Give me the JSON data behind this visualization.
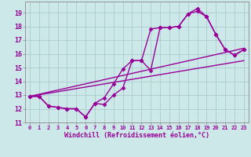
{
  "background_color": "#cce8e8",
  "grid_color": "#aacccc",
  "line_color": "#990099",
  "marker": "D",
  "markersize": 2.5,
  "linewidth": 1.0,
  "xlabel": "Windchill (Refroidissement éolien,°C)",
  "xlim": [
    -0.5,
    23.5
  ],
  "ylim": [
    11,
    19.8
  ],
  "xticks": [
    0,
    1,
    2,
    3,
    4,
    5,
    6,
    7,
    8,
    9,
    10,
    11,
    12,
    13,
    14,
    15,
    16,
    17,
    18,
    19,
    20,
    21,
    22,
    23
  ],
  "yticks": [
    11,
    12,
    13,
    14,
    15,
    16,
    17,
    18,
    19
  ],
  "series_with_markers": [
    {
      "x": [
        0,
        1,
        2,
        3,
        4,
        5,
        6,
        7,
        8,
        9,
        10,
        11,
        12,
        13,
        14,
        15,
        16,
        17,
        18,
        19,
        20,
        21,
        22,
        23
      ],
      "y": [
        12.9,
        12.9,
        12.2,
        12.1,
        12.0,
        12.0,
        11.4,
        12.4,
        12.8,
        13.8,
        14.9,
        15.5,
        15.5,
        17.8,
        17.9,
        17.9,
        18.0,
        18.9,
        19.3,
        18.7,
        17.4,
        16.3,
        15.9,
        16.3
      ]
    },
    {
      "x": [
        0,
        1,
        2,
        3,
        4,
        5,
        6,
        7,
        8,
        9,
        10,
        11,
        12,
        13,
        14,
        15,
        16,
        17,
        18,
        19,
        20,
        21,
        22,
        23
      ],
      "y": [
        12.9,
        12.9,
        12.2,
        12.1,
        12.0,
        12.0,
        11.4,
        12.4,
        12.3,
        13.0,
        13.5,
        15.5,
        15.5,
        14.8,
        17.9,
        17.9,
        18.0,
        18.9,
        19.1,
        18.7,
        17.4,
        16.3,
        15.9,
        16.3
      ]
    }
  ],
  "series_lines": [
    {
      "x": [
        0,
        23
      ],
      "y": [
        12.9,
        16.4
      ]
    },
    {
      "x": [
        0,
        23
      ],
      "y": [
        12.9,
        15.5
      ]
    }
  ]
}
